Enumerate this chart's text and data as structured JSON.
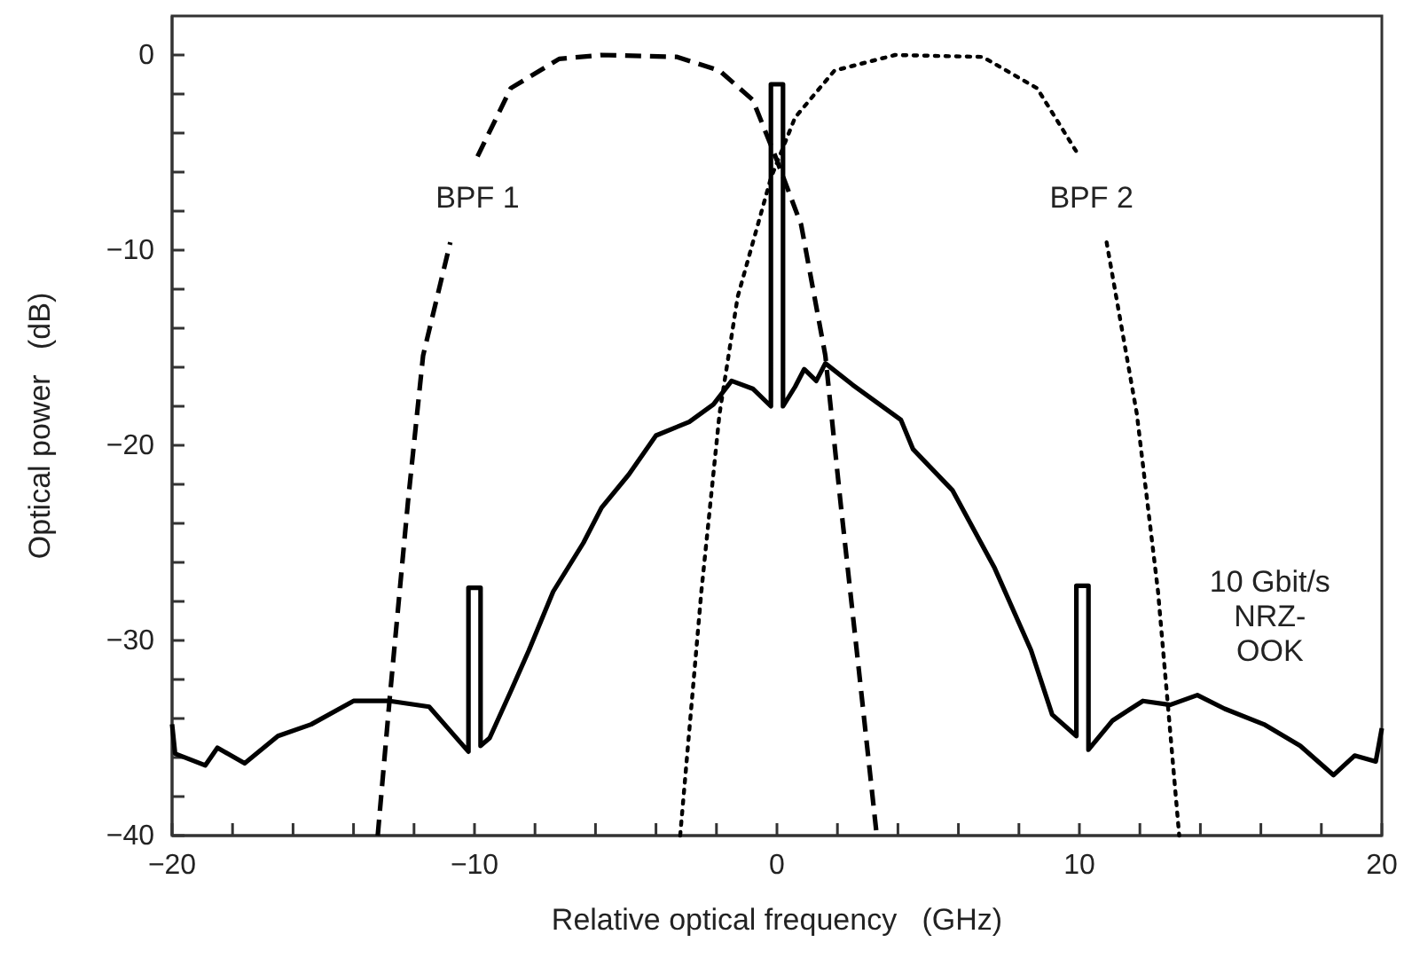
{
  "chart_data": {
    "type": "line",
    "xlabel": "Relative optical frequency   (GHz)",
    "ylabel": "Optical power   (dB)",
    "xlim": [
      -20,
      20
    ],
    "ylim": [
      -40,
      2
    ],
    "xticks": [
      {
        "value": -20,
        "label": "−20"
      },
      {
        "value": -18,
        "label": null
      },
      {
        "value": -16,
        "label": null
      },
      {
        "value": -14,
        "label": null
      },
      {
        "value": -12,
        "label": null
      },
      {
        "value": -10,
        "label": "−10"
      },
      {
        "value": -8,
        "label": null
      },
      {
        "value": -6,
        "label": null
      },
      {
        "value": -4,
        "label": null
      },
      {
        "value": -2,
        "label": null
      },
      0,
      {
        "value": 2,
        "label": null
      },
      {
        "value": 4,
        "label": null
      },
      {
        "value": 6,
        "label": null
      },
      {
        "value": 8,
        "label": null
      },
      10,
      {
        "value": 12,
        "label": null
      },
      {
        "value": 14,
        "label": null
      },
      {
        "value": 16,
        "label": null
      },
      {
        "value": 18,
        "label": null
      },
      20
    ],
    "yticks": [
      {
        "value": -40,
        "label": "−40"
      },
      {
        "value": -38,
        "label": null
      },
      {
        "value": -36,
        "label": null
      },
      {
        "value": -34,
        "label": null
      },
      {
        "value": -32,
        "label": null
      },
      {
        "value": -30,
        "label": "−30"
      },
      {
        "value": -28,
        "label": null
      },
      {
        "value": -26,
        "label": null
      },
      {
        "value": -24,
        "label": null
      },
      {
        "value": -22,
        "label": null
      },
      {
        "value": -20,
        "label": "−20"
      },
      {
        "value": -18,
        "label": null
      },
      {
        "value": -16,
        "label": null
      },
      {
        "value": -14,
        "label": null
      },
      {
        "value": -12,
        "label": null
      },
      {
        "value": -10,
        "label": "−10"
      },
      {
        "value": -8,
        "label": null
      },
      {
        "value": -6,
        "label": null
      },
      {
        "value": -4,
        "label": null
      },
      {
        "value": -2,
        "label": null
      },
      0
    ],
    "marker": "none",
    "series": [
      {
        "name": "BPF 1",
        "color": "#000000",
        "line_style": "dashed",
        "x": [
          -13.2,
          -12.8,
          -12.2,
          -11.7,
          -10.8,
          -10.3,
          -9.9,
          -8.8,
          -7.2,
          -5.8,
          -3.3,
          -1.9,
          -0.8,
          0,
          0.8,
          1.6,
          2.1,
          2.7,
          3.3
        ],
        "values": [
          -40,
          -32.9,
          -22.9,
          -15.4,
          -9.6,
          null,
          -5.2,
          -1.7,
          -0.2,
          0,
          -0.1,
          -0.8,
          -2.3,
          -5.4,
          -8.7,
          -15.4,
          -22.9,
          -31.4,
          -40
        ]
      },
      {
        "name": "BPF 2",
        "color": "#000000",
        "line_style": "dotted",
        "x": [
          -3.2,
          -2.5,
          -1.9,
          -1.3,
          -0.2,
          0.6,
          1.9,
          3.9,
          6.8,
          8.6,
          10,
          10.4,
          10.9,
          11.9,
          12.6,
          13.3
        ],
        "values": [
          -40,
          -27.5,
          -18.4,
          -12.4,
          -6.3,
          -3.2,
          -0.8,
          0,
          -0.1,
          -1.7,
          -5.2,
          null,
          -9.6,
          -18.4,
          -27.5,
          -40
        ]
      },
      {
        "name": "10 Gbit/s NRZ-OOK",
        "color": "#000000",
        "line_style": "solid",
        "x": [
          -20,
          -19.9,
          -18.9,
          -18.5,
          -17.6,
          -16.5,
          -15.4,
          -14,
          -12.8,
          -11.5,
          -10.2,
          -10.2,
          -9.8,
          -9.8,
          -9.5,
          -8.8,
          -8.2,
          -7.4,
          -6.4,
          -5.8,
          -4.9,
          -4,
          -2.9,
          -2.1,
          -1.5,
          -0.8,
          -0.2,
          -0.2,
          0.2,
          0.2,
          0.6,
          0.9,
          1.3,
          1.6,
          2.5,
          4.1,
          4.5,
          5.8,
          7.2,
          8.4,
          9.1,
          9.9,
          9.9,
          10.3,
          10.3,
          11.1,
          12.1,
          13,
          13.9,
          14.8,
          16.1,
          17.3,
          18.4,
          19.1,
          19.8,
          20
        ],
        "values": [
          -34.3,
          -35.8,
          -36.4,
          -35.5,
          -36.3,
          -34.9,
          -34.3,
          -33.1,
          -33.1,
          -33.4,
          -35.7,
          -27.3,
          -27.3,
          -35.4,
          -35,
          -32.6,
          -30.5,
          -27.5,
          -25,
          -23.2,
          -21.5,
          -19.5,
          -18.8,
          -17.9,
          -16.7,
          -17.1,
          -18,
          -1.5,
          -1.5,
          -18,
          -17,
          -16.1,
          -16.7,
          -15.8,
          -16.9,
          -18.7,
          -20.2,
          -22.3,
          -26.3,
          -30.5,
          -33.8,
          -34.9,
          -27.2,
          -27.2,
          -35.6,
          -34.1,
          -33.1,
          -33.3,
          -32.8,
          -33.5,
          -34.3,
          -35.4,
          -36.9,
          -35.9,
          -36.2,
          -34.5
        ]
      }
    ]
  }
}
